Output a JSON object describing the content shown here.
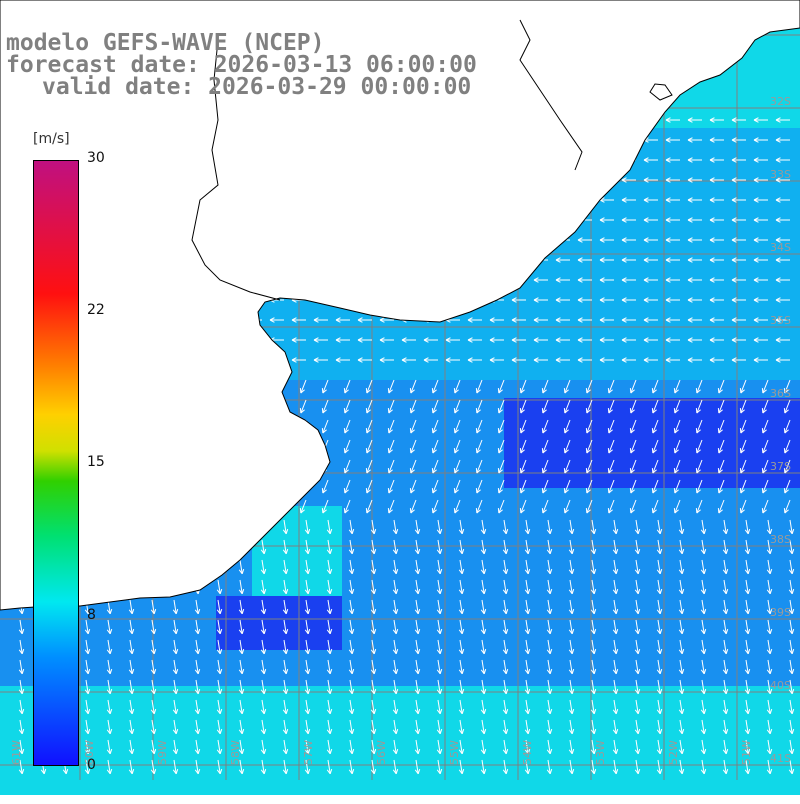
{
  "header": {
    "title": "modelo GEFS-WAVE (NCEP)",
    "forecast_date": "forecast date: 2026-03-13 06:00:00",
    "valid_date": "valid date: 2026-03-29 00:00:00"
  },
  "colorbar": {
    "unit": "[m/s]",
    "ticks": [
      "30",
      "22",
      "15",
      "8",
      "0"
    ],
    "tick_values": [
      30,
      22,
      15,
      8,
      0
    ],
    "min": 0,
    "max": 30
  },
  "map": {
    "lat_labels": [
      "32S",
      "33S",
      "34S",
      "35S",
      "36S",
      "37S",
      "38S",
      "39S",
      "40S",
      "41S"
    ],
    "lon_labels": [
      "61W",
      "60W",
      "59W",
      "58W",
      "57W",
      "56W",
      "55W",
      "54W",
      "53W",
      "52W",
      "51W"
    ],
    "colors": {
      "land": "#ffffff",
      "coast": "#000000",
      "grid": "#7f7f7f",
      "arrows": "#ffffff",
      "header_text": "#808080"
    }
  }
}
